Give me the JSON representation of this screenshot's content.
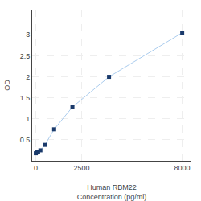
{
  "chart_data": {
    "type": "line",
    "x": [
      0,
      62.5,
      125,
      250,
      500,
      1000,
      2000,
      4000,
      8000
    ],
    "values": [
      0.18,
      0.2,
      0.22,
      0.25,
      0.38,
      0.75,
      1.28,
      2.0,
      3.05
    ],
    "color": "#aaccee",
    "colors": [
      "#1a3a6b",
      "#1a3a6b",
      "#1a3a6b",
      "#1a3a6b",
      "#1a3a6b",
      "#1a3a6b",
      "#1a3a6b",
      "#1a3a6b",
      "#1a3a6b"
    ],
    "marker": "square",
    "xlabel": "Human RBM22\nConcentration (pg/ml)",
    "ylabel": "OD",
    "xlim": [
      -200,
      8500
    ],
    "xticks": [
      0,
      2500,
      8000
    ],
    "ylim": [
      0,
      3.6
    ],
    "yticks": [
      0.5,
      1,
      1.5,
      2,
      2.5,
      3
    ],
    "grid": true
  }
}
